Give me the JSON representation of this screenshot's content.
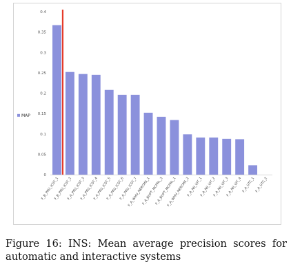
{
  "chart_data": {
    "type": "bar",
    "categories": [
      "F_B_PKU_ICST_1",
      "F_B_PKU_ICST_2",
      "F_A_PKU_ICST_3",
      "F_A_PKU_ICST_4",
      "F_A_PKU_ICST_5",
      "F_A_PKU_ICST_6",
      "F_A_PKU_ICST_7",
      "F_A_WHU_NERCMS_1",
      "F_A_BUPT_MCPRL_3",
      "F_A_BUPT_MCPRL_1",
      "F_A_WHU_NERCMS_2",
      "F_A_NII_UIT_1",
      "F_A_NII_UIT_2",
      "F_A_NII_UIT_3",
      "F_A_NII_UIT_4",
      "F_A_UTC_1",
      "F_A_UTC_2"
    ],
    "series": [
      {
        "name": "MAP",
        "values": [
          0.367,
          0.252,
          0.247,
          0.245,
          0.208,
          0.196,
          0.196,
          0.152,
          0.142,
          0.134,
          0.099,
          0.091,
          0.091,
          0.088,
          0.087,
          0.023,
          0.0
        ]
      }
    ],
    "ylim": [
      0,
      0.4
    ],
    "yticks": [
      "0",
      "0.05",
      "0.1",
      "0.15",
      "0.2",
      "0.25",
      "0.3",
      "0.35",
      "0.4"
    ],
    "separator_after_category": 1,
    "legend": "left",
    "grid": false,
    "colors": {
      "bar": "#8b91dc",
      "separator": "#e53b2a"
    }
  },
  "caption": "Figure 16: INS: Mean average precision scores for automatic and interactive systems"
}
